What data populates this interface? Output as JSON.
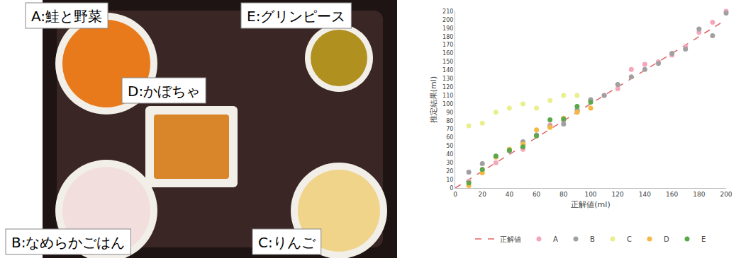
{
  "photo": {
    "labels": [
      "A:鮭と野菜",
      "B:なめらかごはん",
      "C:りんご",
      "D:かぼちゃ",
      "E:グリンピース"
    ]
  },
  "chart_data": {
    "type": "scatter",
    "xlabel": "正解値(ml)",
    "ylabel": "推定結果(ml)",
    "xlim": [
      0,
      200
    ],
    "xticks": [
      0,
      20,
      40,
      60,
      80,
      100,
      120,
      140,
      160,
      180,
      200
    ],
    "ylim": [
      0,
      210
    ],
    "yticks": [
      0,
      10,
      20,
      30,
      40,
      50,
      60,
      70,
      80,
      90,
      100,
      110,
      120,
      130,
      140,
      150,
      160,
      170,
      180,
      190,
      200,
      210
    ],
    "grid": false,
    "legend": "bottom",
    "series": [
      {
        "name": "正解値",
        "type": "line",
        "line_style": "dashed",
        "color": "#e06666",
        "x": [
          0,
          200
        ],
        "values": [
          0,
          200
        ]
      },
      {
        "name": "A",
        "marker": "circle",
        "color": "#f4a6ba",
        "x": [
          10,
          20,
          30,
          40,
          50,
          60,
          70,
          80,
          90,
          100,
          110,
          120,
          130,
          140,
          150,
          160,
          170,
          180,
          190,
          200
        ],
        "values": [
          8,
          22,
          30,
          45,
          46,
          63,
          75,
          80,
          90,
          104,
          110,
          118,
          141,
          147,
          150,
          158,
          168,
          185,
          197,
          210
        ]
      },
      {
        "name": "B",
        "marker": "circle",
        "color": "#a0a0a0",
        "x": [
          10,
          20,
          30,
          40,
          50,
          60,
          70,
          80,
          90,
          100,
          110,
          120,
          130,
          140,
          150,
          160,
          170,
          180,
          190,
          200
        ],
        "values": [
          19,
          29,
          37,
          44,
          55,
          63,
          73,
          76,
          93,
          105,
          110,
          123,
          132,
          141,
          148,
          160,
          165,
          189,
          181,
          208
        ]
      },
      {
        "name": "C",
        "marker": "circle",
        "color": "#e8ef8c",
        "x": [
          10,
          20,
          30,
          40,
          50,
          60,
          70,
          80,
          90
        ],
        "values": [
          74,
          77,
          90,
          95,
          100,
          95,
          104,
          110,
          110
        ]
      },
      {
        "name": "D",
        "marker": "circle",
        "color": "#f4b942",
        "x": [
          10,
          20,
          30,
          40,
          50,
          60,
          70,
          80,
          90,
          100
        ],
        "values": [
          3,
          18,
          37,
          46,
          52,
          69,
          72,
          83,
          90,
          95
        ]
      },
      {
        "name": "E",
        "marker": "circle",
        "color": "#5aa84a",
        "x": [
          10,
          20,
          30,
          40,
          50,
          60,
          70,
          80,
          90,
          100
        ],
        "values": [
          6,
          22,
          38,
          45,
          49,
          62,
          81,
          82,
          97,
          102
        ]
      }
    ]
  }
}
